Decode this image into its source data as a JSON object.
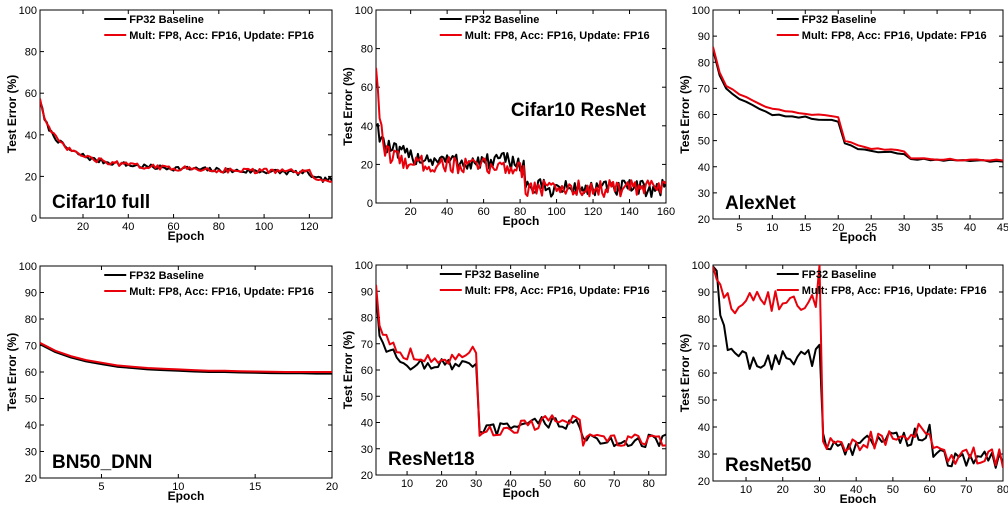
{
  "legend": {
    "baseline": "FP32 Baseline",
    "fp8": "Mult: FP8, Acc: FP16, Update: FP16"
  },
  "colors": {
    "baseline": "#000000",
    "fp8": "#e8000b"
  },
  "chart_data": [
    {
      "type": "line",
      "title": "Cifar10 full",
      "xlabel": "Epoch",
      "ylabel": "Test Error (%)",
      "xlim": [
        1,
        130
      ],
      "ylim": [
        0,
        100
      ],
      "xticks": [
        20,
        40,
        60,
        80,
        100,
        120
      ],
      "yticks": [
        0,
        20,
        40,
        60,
        80,
        100
      ],
      "legend_position": "top-right",
      "label_position": "bottom-left",
      "series": [
        {
          "name": "FP32 Baseline",
          "noise": 1.2,
          "x": [
            1,
            3,
            6,
            10,
            15,
            20,
            25,
            30,
            40,
            50,
            60,
            70,
            80,
            90,
            100,
            110,
            120,
            122,
            125,
            130
          ],
          "y": [
            57,
            47,
            41,
            36,
            32,
            30,
            28,
            27,
            25.5,
            24.5,
            24,
            23.5,
            23,
            22.5,
            22.5,
            22,
            21.5,
            19,
            18.5,
            18.5
          ]
        },
        {
          "name": "Mult: FP8, Acc: FP16, Update: FP16",
          "noise": 1.2,
          "x": [
            1,
            3,
            6,
            10,
            15,
            20,
            25,
            30,
            40,
            50,
            60,
            70,
            80,
            90,
            100,
            110,
            120,
            122,
            125,
            130
          ],
          "y": [
            58,
            48,
            41,
            36,
            32,
            30,
            28,
            27,
            25.5,
            24.5,
            24,
            23.5,
            23,
            23,
            22.5,
            22.5,
            22,
            19,
            18.5,
            18.5
          ]
        }
      ]
    },
    {
      "type": "line",
      "title": "Cifar10 ResNet",
      "xlabel": "Epoch",
      "ylabel": "Test Error (%)",
      "xlim": [
        1,
        160
      ],
      "ylim": [
        0,
        100
      ],
      "xticks": [
        20,
        40,
        60,
        80,
        100,
        120,
        140,
        160
      ],
      "yticks": [
        0,
        20,
        40,
        60,
        80,
        100
      ],
      "legend_position": "top-right",
      "label_position": "top-right",
      "series": [
        {
          "name": "FP32 Baseline",
          "noise": 4.5,
          "x": [
            1,
            3,
            6,
            10,
            20,
            30,
            40,
            50,
            60,
            70,
            80,
            82,
            83,
            90,
            100,
            120,
            140,
            160
          ],
          "y": [
            42,
            36,
            30,
            27,
            24,
            23,
            22,
            21,
            21,
            22,
            21,
            20,
            8,
            8,
            7.5,
            7.5,
            7.5,
            7.5
          ]
        },
        {
          "name": "Mult: FP8, Acc: FP16, Update: FP16",
          "noise": 4.5,
          "x": [
            1,
            3,
            6,
            10,
            20,
            30,
            40,
            50,
            60,
            70,
            80,
            82,
            83,
            90,
            100,
            120,
            140,
            160
          ],
          "y": [
            72,
            40,
            28,
            24,
            21,
            20,
            20,
            19,
            19,
            19,
            18,
            17,
            8,
            8,
            7.5,
            7.5,
            7.5,
            7.5
          ]
        }
      ]
    },
    {
      "type": "line",
      "title": "AlexNet",
      "xlabel": "Epoch",
      "ylabel": "Test Error (%)",
      "xlim": [
        1,
        45
      ],
      "ylim": [
        20,
        100
      ],
      "xticks": [
        5,
        10,
        15,
        20,
        25,
        30,
        35,
        40,
        45
      ],
      "yticks": [
        20,
        30,
        40,
        50,
        60,
        70,
        80,
        90,
        100
      ],
      "legend_position": "top-right",
      "label_position": "bottom-left",
      "series": [
        {
          "name": "FP32 Baseline",
          "noise": 0.3,
          "x": [
            1,
            2,
            3,
            5,
            8,
            10,
            13,
            15,
            17,
            19,
            20,
            21,
            23,
            25,
            28,
            30,
            31,
            35,
            40,
            45
          ],
          "y": [
            85,
            75,
            70,
            66,
            62,
            60,
            59,
            59,
            58,
            58,
            57,
            49,
            47,
            46,
            45.5,
            45,
            43,
            42.5,
            42.5,
            42
          ]
        },
        {
          "name": "Mult: FP8, Acc: FP16, Update: FP16",
          "noise": 0.3,
          "x": [
            1,
            2,
            3,
            5,
            8,
            10,
            13,
            15,
            17,
            19,
            20,
            21,
            23,
            25,
            28,
            30,
            31,
            35,
            40,
            45
          ],
          "y": [
            86,
            76,
            71,
            68,
            64,
            62,
            61,
            60,
            60,
            59.5,
            59,
            50,
            48,
            47,
            46.5,
            46,
            43.5,
            43,
            42.5,
            42.5
          ]
        }
      ]
    },
    {
      "type": "line",
      "title": "BN50_DNN",
      "xlabel": "Epoch",
      "ylabel": "Test Error (%)",
      "xlim": [
        1,
        20
      ],
      "ylim": [
        20,
        100
      ],
      "xticks": [
        5,
        10,
        15,
        20
      ],
      "yticks": [
        20,
        30,
        40,
        50,
        60,
        70,
        80,
        90,
        100
      ],
      "legend_position": "top-right",
      "label_position": "bottom-left",
      "series": [
        {
          "name": "FP32 Baseline",
          "noise": 0,
          "x": [
            1,
            2,
            3,
            4,
            5,
            6,
            7,
            8,
            9,
            10,
            11,
            12,
            13,
            14,
            15,
            16,
            17,
            18,
            19,
            20
          ],
          "y": [
            70.5,
            67.5,
            65.5,
            64,
            63,
            62,
            61.5,
            61,
            60.7,
            60.5,
            60.2,
            60,
            60,
            59.8,
            59.7,
            59.6,
            59.5,
            59.5,
            59.4,
            59.4
          ]
        },
        {
          "name": "Mult: FP8, Acc: FP16, Update: FP16",
          "noise": 0,
          "x": [
            1,
            2,
            3,
            4,
            5,
            6,
            7,
            8,
            9,
            10,
            11,
            12,
            13,
            14,
            15,
            16,
            17,
            18,
            19,
            20
          ],
          "y": [
            71,
            68,
            66,
            64.5,
            63.5,
            62.5,
            62,
            61.5,
            61.2,
            61,
            60.7,
            60.5,
            60.5,
            60.3,
            60.2,
            60.1,
            60,
            60,
            60,
            60
          ]
        }
      ]
    },
    {
      "type": "line",
      "title": "ResNet18",
      "xlabel": "Epoch",
      "ylabel": "Test Error (%)",
      "xlim": [
        1,
        85
      ],
      "ylim": [
        20,
        100
      ],
      "xticks": [
        10,
        20,
        30,
        40,
        50,
        60,
        70,
        80
      ],
      "yticks": [
        20,
        30,
        40,
        50,
        60,
        70,
        80,
        90,
        100
      ],
      "legend_position": "top-right",
      "label_position": "bottom-left",
      "series": [
        {
          "name": "FP32 Baseline",
          "noise": 2.5,
          "x": [
            1,
            2,
            4,
            8,
            15,
            20,
            25,
            29,
            30,
            31,
            35,
            40,
            45,
            50,
            55,
            59,
            60,
            61,
            70,
            80,
            85
          ],
          "y": [
            90,
            75,
            68,
            63,
            62,
            62,
            62,
            62,
            60,
            37,
            37,
            38,
            39,
            40,
            40,
            40,
            39,
            33,
            33,
            33,
            33
          ]
        },
        {
          "name": "Mult: FP8, Acc: FP16, Update: FP16",
          "noise": 2.5,
          "x": [
            1,
            2,
            4,
            8,
            15,
            20,
            25,
            29,
            30,
            31,
            35,
            40,
            45,
            50,
            55,
            59,
            60,
            61,
            70,
            80,
            85
          ],
          "y": [
            93,
            78,
            72,
            67,
            65,
            64,
            64,
            67,
            64,
            37,
            37,
            38,
            39,
            40,
            41,
            41,
            40,
            33,
            33.5,
            33.5,
            33.5
          ]
        }
      ]
    },
    {
      "type": "line",
      "title": "ResNet50",
      "xlabel": "Epoch",
      "ylabel": "Test Error (%)",
      "xlim": [
        1,
        80
      ],
      "ylim": [
        20,
        100
      ],
      "xticks": [
        10,
        20,
        30,
        40,
        50,
        60,
        70,
        80
      ],
      "yticks": [
        20,
        30,
        40,
        50,
        60,
        70,
        80,
        90,
        100
      ],
      "legend_position": "top-right",
      "label_position": "bottom-left",
      "series": [
        {
          "name": "FP32 Baseline",
          "noise": 3.5,
          "x": [
            1,
            2,
            3,
            5,
            10,
            15,
            20,
            25,
            29,
            30,
            31,
            32,
            40,
            50,
            59,
            60,
            61,
            65,
            70,
            80
          ],
          "y": [
            100,
            95,
            80,
            70,
            65,
            64,
            65,
            66,
            66,
            68,
            38,
            33,
            33,
            36,
            37,
            38,
            29,
            28,
            28,
            28
          ]
        },
        {
          "name": "Mult: FP8, Acc: FP16, Update: FP16",
          "noise": 4,
          "x": [
            1,
            2,
            3,
            5,
            10,
            15,
            20,
            25,
            29,
            30,
            31,
            32,
            40,
            50,
            59,
            60,
            61,
            65,
            70,
            80
          ],
          "y": [
            100,
            98,
            92,
            86,
            86,
            87,
            86,
            85,
            85,
            97,
            38,
            33,
            34,
            37,
            39,
            39,
            29,
            28,
            28.5,
            28.5
          ]
        }
      ]
    }
  ]
}
